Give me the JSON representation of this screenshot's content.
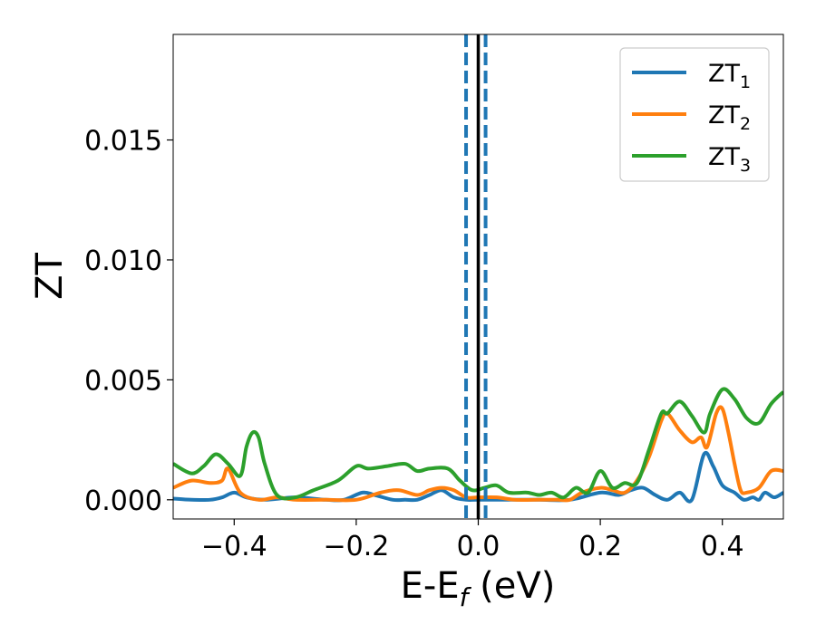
{
  "chart_data": {
    "type": "line",
    "title": "",
    "xlabel_main": "E-E",
    "xlabel_sub": "f",
    "xlabel_unit": " (eV)",
    "ylabel": "ZT",
    "xlim": [
      -0.5,
      0.5
    ],
    "ylim": [
      -0.0008,
      0.0194
    ],
    "x_ticks": [
      -0.4,
      -0.2,
      0.0,
      0.2,
      0.4
    ],
    "x_tick_labels": [
      "−0.4",
      "−0.2",
      "0.0",
      "0.2",
      "0.4"
    ],
    "y_ticks": [
      0.0,
      0.005,
      0.01,
      0.015
    ],
    "y_tick_labels": [
      "0.000",
      "0.005",
      "0.010",
      "0.015"
    ],
    "grid": false,
    "legend_position": "top-right",
    "vertical_lines": [
      {
        "x": -0.02,
        "style": "dashed",
        "color": "#1f77b4"
      },
      {
        "x": 0.0,
        "style": "solid",
        "color": "#000000"
      },
      {
        "x": 0.012,
        "style": "dashed",
        "color": "#1f77b4"
      }
    ],
    "series": [
      {
        "label_main": "ZT",
        "label_sub": "1",
        "color": "#1f77b4",
        "points": [
          [
            -0.5,
            5e-05
          ],
          [
            -0.47,
            0.0
          ],
          [
            -0.44,
            0.0
          ],
          [
            -0.42,
            0.0001
          ],
          [
            -0.4,
            0.0003
          ],
          [
            -0.38,
            0.0001
          ],
          [
            -0.35,
            0.0
          ],
          [
            -0.3,
            0.0001
          ],
          [
            -0.25,
            0.0
          ],
          [
            -0.22,
            0.0
          ],
          [
            -0.19,
            0.0003
          ],
          [
            -0.17,
            0.0002
          ],
          [
            -0.14,
            0.0
          ],
          [
            -0.12,
            0.0
          ],
          [
            -0.1,
            0.0
          ],
          [
            -0.08,
            0.0002
          ],
          [
            -0.06,
            0.0004
          ],
          [
            -0.04,
            0.0001
          ],
          [
            -0.02,
            0.0
          ],
          [
            0.0,
            0.0
          ],
          [
            0.05,
            0.0
          ],
          [
            0.1,
            0.0
          ],
          [
            0.15,
            0.0
          ],
          [
            0.2,
            0.0003
          ],
          [
            0.23,
            0.0002
          ],
          [
            0.25,
            0.0004
          ],
          [
            0.27,
            0.0005
          ],
          [
            0.29,
            0.0002
          ],
          [
            0.31,
            0.0
          ],
          [
            0.33,
            0.0003
          ],
          [
            0.35,
            0.0
          ],
          [
            0.37,
            0.0019
          ],
          [
            0.385,
            0.0014
          ],
          [
            0.4,
            0.0006
          ],
          [
            0.42,
            0.0003
          ],
          [
            0.435,
            0.0
          ],
          [
            0.45,
            0.0001
          ],
          [
            0.46,
            0.0
          ],
          [
            0.47,
            0.0003
          ],
          [
            0.485,
            0.0001
          ],
          [
            0.5,
            0.0003
          ]
        ]
      },
      {
        "label_main": "ZT",
        "label_sub": "2",
        "color": "#ff7f0e",
        "points": [
          [
            -0.5,
            0.0005
          ],
          [
            -0.47,
            0.0008
          ],
          [
            -0.44,
            0.0007
          ],
          [
            -0.42,
            0.0008
          ],
          [
            -0.41,
            0.0013
          ],
          [
            -0.39,
            0.0003
          ],
          [
            -0.36,
            0.0
          ],
          [
            -0.33,
            0.0001
          ],
          [
            -0.3,
            0.0
          ],
          [
            -0.25,
            0.0
          ],
          [
            -0.2,
            0.0
          ],
          [
            -0.16,
            0.0003
          ],
          [
            -0.13,
            0.0004
          ],
          [
            -0.1,
            0.0002
          ],
          [
            -0.08,
            0.0004
          ],
          [
            -0.06,
            0.0005
          ],
          [
            -0.04,
            0.0004
          ],
          [
            -0.02,
            0.0001
          ],
          [
            0.0,
            0.0001
          ],
          [
            0.03,
            0.0001
          ],
          [
            0.06,
            0.0
          ],
          [
            0.1,
            0.0
          ],
          [
            0.13,
            0.0
          ],
          [
            0.15,
            0.0
          ],
          [
            0.17,
            0.0003
          ],
          [
            0.2,
            0.0005
          ],
          [
            0.22,
            0.0004
          ],
          [
            0.24,
            0.0003
          ],
          [
            0.26,
            0.0008
          ],
          [
            0.28,
            0.0018
          ],
          [
            0.3,
            0.0033
          ],
          [
            0.31,
            0.0036
          ],
          [
            0.33,
            0.0029
          ],
          [
            0.35,
            0.0024
          ],
          [
            0.365,
            0.0026
          ],
          [
            0.375,
            0.0022
          ],
          [
            0.39,
            0.0036
          ],
          [
            0.4,
            0.0038
          ],
          [
            0.41,
            0.0028
          ],
          [
            0.42,
            0.0015
          ],
          [
            0.43,
            0.0004
          ],
          [
            0.44,
            0.0003
          ],
          [
            0.46,
            0.0005
          ],
          [
            0.48,
            0.0012
          ],
          [
            0.5,
            0.0012
          ]
        ]
      },
      {
        "label_main": "ZT",
        "label_sub": "3",
        "color": "#2ca02c",
        "points": [
          [
            -0.5,
            0.0015
          ],
          [
            -0.47,
            0.0011
          ],
          [
            -0.45,
            0.0014
          ],
          [
            -0.43,
            0.0019
          ],
          [
            -0.41,
            0.0015
          ],
          [
            -0.39,
            0.001
          ],
          [
            -0.38,
            0.0022
          ],
          [
            -0.37,
            0.0028
          ],
          [
            -0.36,
            0.0026
          ],
          [
            -0.35,
            0.0015
          ],
          [
            -0.33,
            0.0002
          ],
          [
            -0.3,
            0.0001
          ],
          [
            -0.27,
            0.0004
          ],
          [
            -0.23,
            0.0008
          ],
          [
            -0.2,
            0.0014
          ],
          [
            -0.18,
            0.0013
          ],
          [
            -0.15,
            0.0014
          ],
          [
            -0.12,
            0.0015
          ],
          [
            -0.1,
            0.0012
          ],
          [
            -0.08,
            0.0013
          ],
          [
            -0.05,
            0.0013
          ],
          [
            -0.03,
            0.0008
          ],
          [
            -0.01,
            0.0004
          ],
          [
            0.01,
            0.0005
          ],
          [
            0.03,
            0.0006
          ],
          [
            0.05,
            0.0003
          ],
          [
            0.08,
            0.0003
          ],
          [
            0.1,
            0.0002
          ],
          [
            0.12,
            0.0003
          ],
          [
            0.14,
            0.0001
          ],
          [
            0.16,
            0.0005
          ],
          [
            0.18,
            0.0003
          ],
          [
            0.2,
            0.0012
          ],
          [
            0.22,
            0.0005
          ],
          [
            0.24,
            0.0007
          ],
          [
            0.26,
            0.0007
          ],
          [
            0.28,
            0.0021
          ],
          [
            0.3,
            0.0036
          ],
          [
            0.31,
            0.0036
          ],
          [
            0.33,
            0.0041
          ],
          [
            0.35,
            0.0035
          ],
          [
            0.37,
            0.0028
          ],
          [
            0.38,
            0.0036
          ],
          [
            0.4,
            0.0046
          ],
          [
            0.42,
            0.0042
          ],
          [
            0.44,
            0.0034
          ],
          [
            0.46,
            0.0032
          ],
          [
            0.48,
            0.004
          ],
          [
            0.5,
            0.0045
          ]
        ]
      }
    ]
  }
}
